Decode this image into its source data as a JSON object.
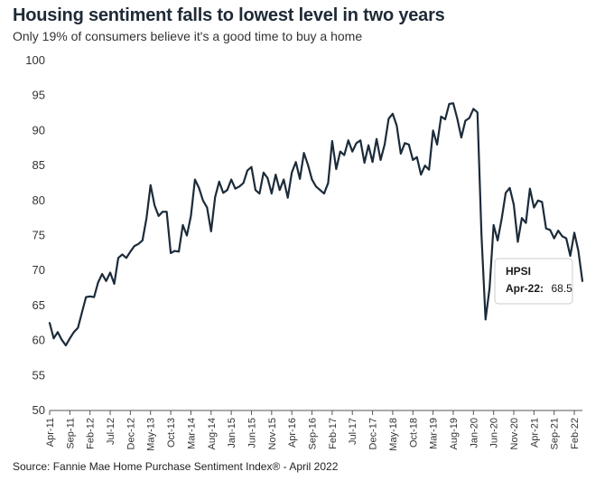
{
  "header": {
    "title": "Housing sentiment falls to lowest level in two years",
    "subtitle": "Only 19% of consumers believe it's a good time to buy a home"
  },
  "footer": {
    "source": "Source: Fannie Mae Home Purchase Sentiment Index® - April 2022"
  },
  "tooltip": {
    "series": "HPSI",
    "label": "Apr-22:",
    "value": "68.5"
  },
  "colors": {
    "line": "#1c2b3a",
    "axis": "#555555"
  },
  "chart_data": {
    "type": "line",
    "title": "Housing sentiment falls to lowest level in two years",
    "subtitle": "Only 19% of consumers believe it's a good time to buy a home",
    "ylim": [
      50,
      100
    ],
    "yticks": [
      50,
      55,
      60,
      65,
      70,
      75,
      80,
      85,
      90,
      95,
      100
    ],
    "grid": false,
    "xtick_labels": [
      "Apr-11",
      "Sep-11",
      "Feb-12",
      "Jul-12",
      "Dec-12",
      "May-13",
      "Oct-13",
      "Mar-14",
      "Aug-14",
      "Jan-15",
      "Jun-15",
      "Nov-15",
      "Apr-16",
      "Sep-16",
      "Feb-17",
      "Jul-17",
      "Dec-17",
      "May-18",
      "Oct-18",
      "Mar-19",
      "Aug-19",
      "Jan-20",
      "Jun-20",
      "Nov-20",
      "Apr-21",
      "Sep-21",
      "Feb-22"
    ],
    "series": [
      {
        "name": "HPSI",
        "start": "Apr-11",
        "end": "Apr-22",
        "values": [
          62.5,
          60.3,
          61.2,
          60.1,
          59.3,
          60.3,
          61.2,
          61.8,
          64.0,
          66.2,
          66.3,
          66.2,
          68.3,
          69.5,
          68.5,
          69.7,
          68.1,
          71.8,
          72.3,
          71.8,
          72.7,
          73.5,
          73.8,
          74.3,
          77.5,
          82.2,
          79.3,
          77.8,
          78.4,
          78.4,
          72.5,
          72.8,
          72.7,
          76.5,
          75.0,
          77.8,
          83.0,
          81.8,
          80.0,
          79.0,
          75.6,
          80.5,
          82.7,
          81.1,
          81.5,
          83.0,
          81.7,
          82.0,
          82.5,
          84.3,
          84.8,
          81.5,
          81.0,
          84.0,
          83.2,
          81.0,
          83.7,
          81.5,
          83.0,
          80.4,
          84.0,
          85.5,
          83.1,
          86.8,
          85.1,
          83.0,
          82.0,
          81.5,
          81.0,
          82.5,
          88.5,
          84.5,
          87.0,
          86.5,
          88.6,
          87.0,
          88.2,
          88.6,
          85.4,
          87.9,
          85.5,
          88.8,
          85.8,
          88.0,
          91.7,
          92.4,
          90.7,
          86.7,
          88.2,
          88.0,
          85.8,
          86.2,
          83.7,
          85.0,
          84.4,
          90.0,
          88.0,
          92.0,
          91.6,
          93.8,
          93.9,
          91.7,
          89.0,
          91.4,
          91.8,
          93.1,
          92.6,
          75.0,
          63.0,
          67.5,
          76.5,
          74.3,
          77.4,
          81.1,
          81.8,
          79.4,
          74.1,
          77.5,
          76.8,
          81.7,
          79.0,
          80.0,
          79.8,
          76.0,
          75.8,
          74.6,
          75.7,
          74.9,
          74.6,
          72.1,
          75.4,
          72.8,
          68.5
        ]
      }
    ]
  }
}
